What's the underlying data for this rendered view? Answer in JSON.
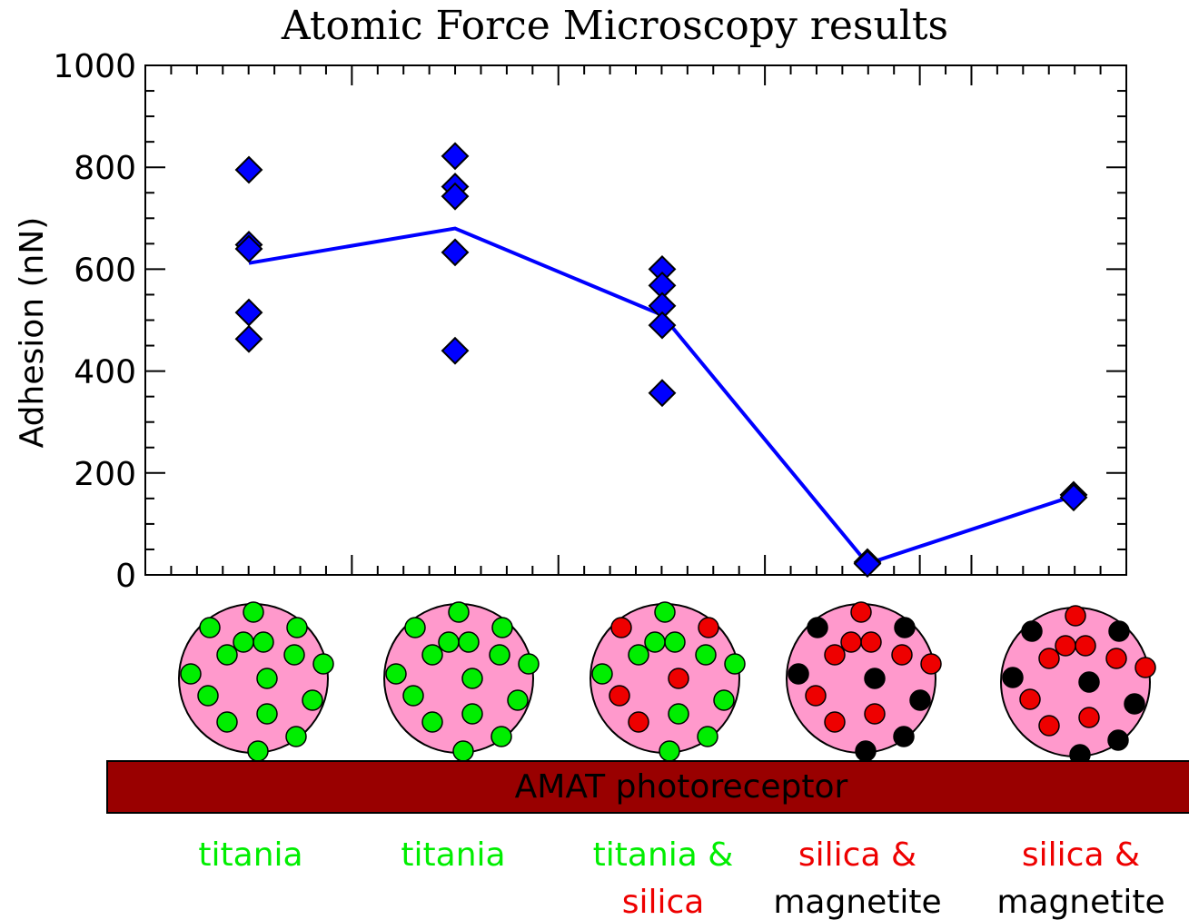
{
  "chart_data": {
    "type": "scatter",
    "title": "Atomic Force Microscopy results",
    "ylabel": "Adhesion (nN)",
    "xlabel": "",
    "ylim": [
      0,
      1000
    ],
    "yticks": [
      "0",
      "200",
      "400",
      "600",
      "800",
      "1000"
    ],
    "grid": false,
    "categories": [
      "titania",
      "titania",
      "titania & silica",
      "silica & magnetite",
      "silica & magnetite"
    ],
    "points": [
      {
        "category": 1,
        "values": [
          795,
          648,
          640,
          515,
          463
        ]
      },
      {
        "category": 2,
        "values": [
          822,
          762,
          743,
          633,
          440
        ]
      },
      {
        "category": 3,
        "values": [
          600,
          568,
          528,
          490,
          357
        ]
      },
      {
        "category": 4,
        "values": [
          25,
          22
        ]
      },
      {
        "category": 5,
        "values": [
          157,
          152
        ]
      }
    ],
    "mean_line": [
      612,
      680,
      510,
      22,
      155
    ],
    "marker_color": "#0000ff",
    "line_color": "#0000ff"
  },
  "substrate": {
    "label": "AMAT photoreceptor",
    "color": "#990000"
  },
  "category_labels": [
    {
      "lines": [
        {
          "text": "titania",
          "color": "#00ee00"
        }
      ]
    },
    {
      "lines": [
        {
          "text": "titania",
          "color": "#00ee00"
        }
      ]
    },
    {
      "lines": [
        {
          "text": "titania &",
          "color": "#00ee00"
        },
        {
          "text": "silica",
          "color": "#ee0000"
        }
      ]
    },
    {
      "lines": [
        {
          "text": "silica &",
          "color": "#ee0000"
        },
        {
          "text": "magnetite",
          "color": "#000000"
        }
      ]
    },
    {
      "lines": [
        {
          "text": "silica &",
          "color": "#ee0000"
        },
        {
          "text": "magnetite",
          "color": "#000000"
        }
      ]
    }
  ],
  "particles": [
    {
      "dots": [
        "green",
        "green",
        "green",
        "green",
        "green",
        "green",
        "green",
        "green",
        "green",
        "green",
        "green",
        "green",
        "green",
        "green",
        "green",
        "green"
      ]
    },
    {
      "dots": [
        "green",
        "green",
        "green",
        "green",
        "green",
        "green",
        "green",
        "green",
        "green",
        "green",
        "green",
        "green",
        "green",
        "green",
        "green",
        "green"
      ]
    },
    {
      "dots": [
        "green",
        "red",
        "red",
        "green",
        "green",
        "green",
        "green",
        "red",
        "green",
        "red",
        "green",
        "green",
        "green",
        "red",
        "green",
        "green"
      ]
    },
    {
      "dots": [
        "red",
        "black",
        "black",
        "red",
        "red",
        "red",
        "black",
        "black",
        "red",
        "red",
        "red",
        "black",
        "red",
        "red",
        "black",
        "black"
      ]
    },
    {
      "dots": [
        "red",
        "black",
        "black",
        "red",
        "red",
        "red",
        "black",
        "black",
        "red",
        "red",
        "red",
        "black",
        "red",
        "red",
        "black",
        "black"
      ]
    }
  ],
  "colors": {
    "particle_fill": "#ff99cc",
    "green": "#00ee00",
    "red": "#ee0000",
    "black": "#000000"
  }
}
